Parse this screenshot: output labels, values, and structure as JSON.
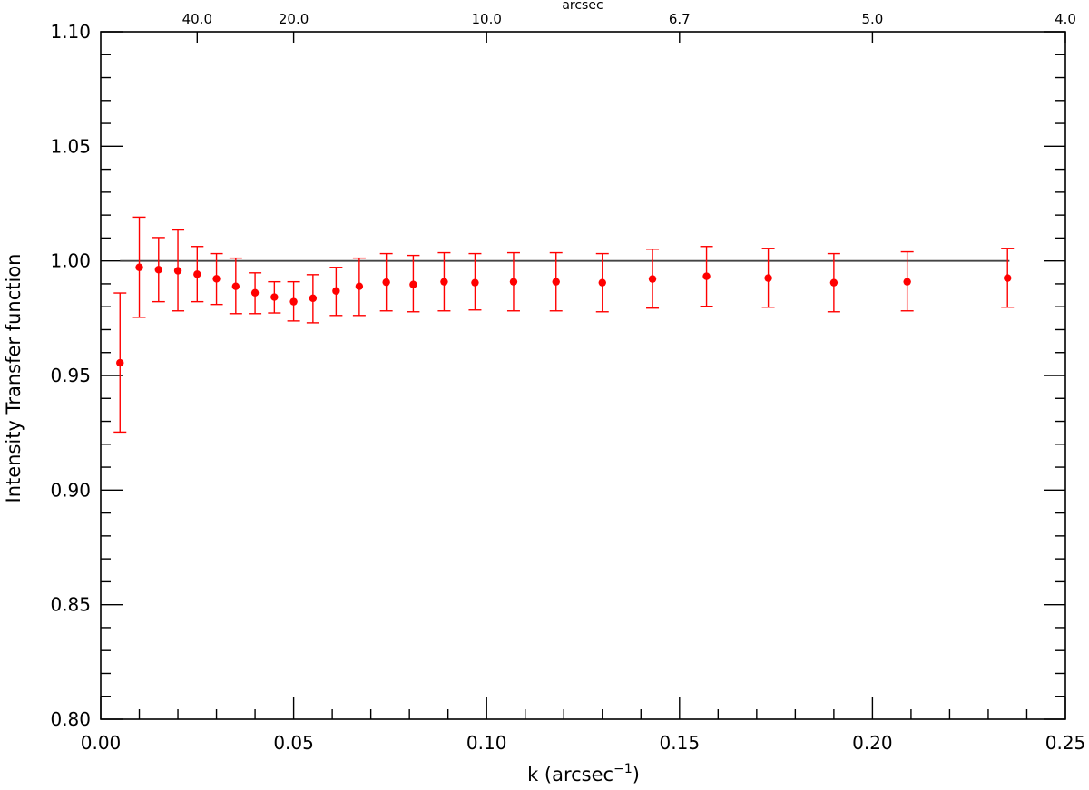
{
  "chart_data": {
    "type": "scatter",
    "xlabel": "k (arcsec",
    "xlabel_superscript": "−1",
    "xlabel_close": ")",
    "ylabel": "Intensity Transfer function",
    "top_axis_label": "arcsec",
    "xlim": [
      0.0,
      0.25
    ],
    "ylim": [
      0.8,
      1.1
    ],
    "x_ticks": [
      "0.00",
      "0.05",
      "0.10",
      "0.15",
      "0.20",
      "0.25"
    ],
    "y_ticks": [
      "0.80",
      "0.85",
      "0.90",
      "0.95",
      "1.00",
      "1.05",
      "1.10"
    ],
    "top_ticks": [
      {
        "label": "40.0",
        "k": 0.025
      },
      {
        "label": "20.0",
        "k": 0.05
      },
      {
        "label": "10.0",
        "k": 0.1
      },
      {
        "label": "6.7",
        "k": 0.15
      },
      {
        "label": "5.0",
        "k": 0.2
      },
      {
        "label": "4.0",
        "k": 0.25
      }
    ],
    "reference_line_y": 1.0,
    "series": [
      {
        "marker_color": "#ff0000",
        "points": [
          {
            "x": 0.005,
            "y": 0.9555,
            "lo": 0.9253,
            "hi": 0.986
          },
          {
            "x": 0.01,
            "y": 0.9972,
            "lo": 0.9754,
            "hi": 1.0191
          },
          {
            "x": 0.015,
            "y": 0.9962,
            "lo": 0.9822,
            "hi": 1.0102
          },
          {
            "x": 0.02,
            "y": 0.9957,
            "lo": 0.9782,
            "hi": 1.0135
          },
          {
            "x": 0.025,
            "y": 0.9942,
            "lo": 0.9822,
            "hi": 1.0063
          },
          {
            "x": 0.03,
            "y": 0.9922,
            "lo": 0.981,
            "hi": 1.0032
          },
          {
            "x": 0.035,
            "y": 0.9889,
            "lo": 0.977,
            "hi": 1.0012
          },
          {
            "x": 0.04,
            "y": 0.9861,
            "lo": 0.977,
            "hi": 0.9948
          },
          {
            "x": 0.045,
            "y": 0.9842,
            "lo": 0.9773,
            "hi": 0.9909
          },
          {
            "x": 0.05,
            "y": 0.9822,
            "lo": 0.9738,
            "hi": 0.9909
          },
          {
            "x": 0.055,
            "y": 0.9837,
            "lo": 0.973,
            "hi": 0.994
          },
          {
            "x": 0.061,
            "y": 0.9869,
            "lo": 0.9762,
            "hi": 0.9972
          },
          {
            "x": 0.067,
            "y": 0.9889,
            "lo": 0.9762,
            "hi": 1.0012
          },
          {
            "x": 0.074,
            "y": 0.9907,
            "lo": 0.9782,
            "hi": 1.0032
          },
          {
            "x": 0.081,
            "y": 0.9897,
            "lo": 0.9778,
            "hi": 1.0024
          },
          {
            "x": 0.089,
            "y": 0.9909,
            "lo": 0.9782,
            "hi": 1.0036
          },
          {
            "x": 0.097,
            "y": 0.9905,
            "lo": 0.9786,
            "hi": 1.0032
          },
          {
            "x": 0.107,
            "y": 0.9909,
            "lo": 0.9782,
            "hi": 1.0036
          },
          {
            "x": 0.118,
            "y": 0.9909,
            "lo": 0.9782,
            "hi": 1.0036
          },
          {
            "x": 0.13,
            "y": 0.9905,
            "lo": 0.9778,
            "hi": 1.0032
          },
          {
            "x": 0.143,
            "y": 0.9921,
            "lo": 0.9794,
            "hi": 1.0051
          },
          {
            "x": 0.157,
            "y": 0.9933,
            "lo": 0.9802,
            "hi": 1.0063
          },
          {
            "x": 0.173,
            "y": 0.9925,
            "lo": 0.9798,
            "hi": 1.0055
          },
          {
            "x": 0.19,
            "y": 0.9905,
            "lo": 0.9778,
            "hi": 1.0032
          },
          {
            "x": 0.209,
            "y": 0.9909,
            "lo": 0.9782,
            "hi": 1.004
          },
          {
            "x": 0.235,
            "y": 0.9925,
            "lo": 0.9798,
            "hi": 1.0055
          }
        ]
      }
    ],
    "grid": false
  }
}
